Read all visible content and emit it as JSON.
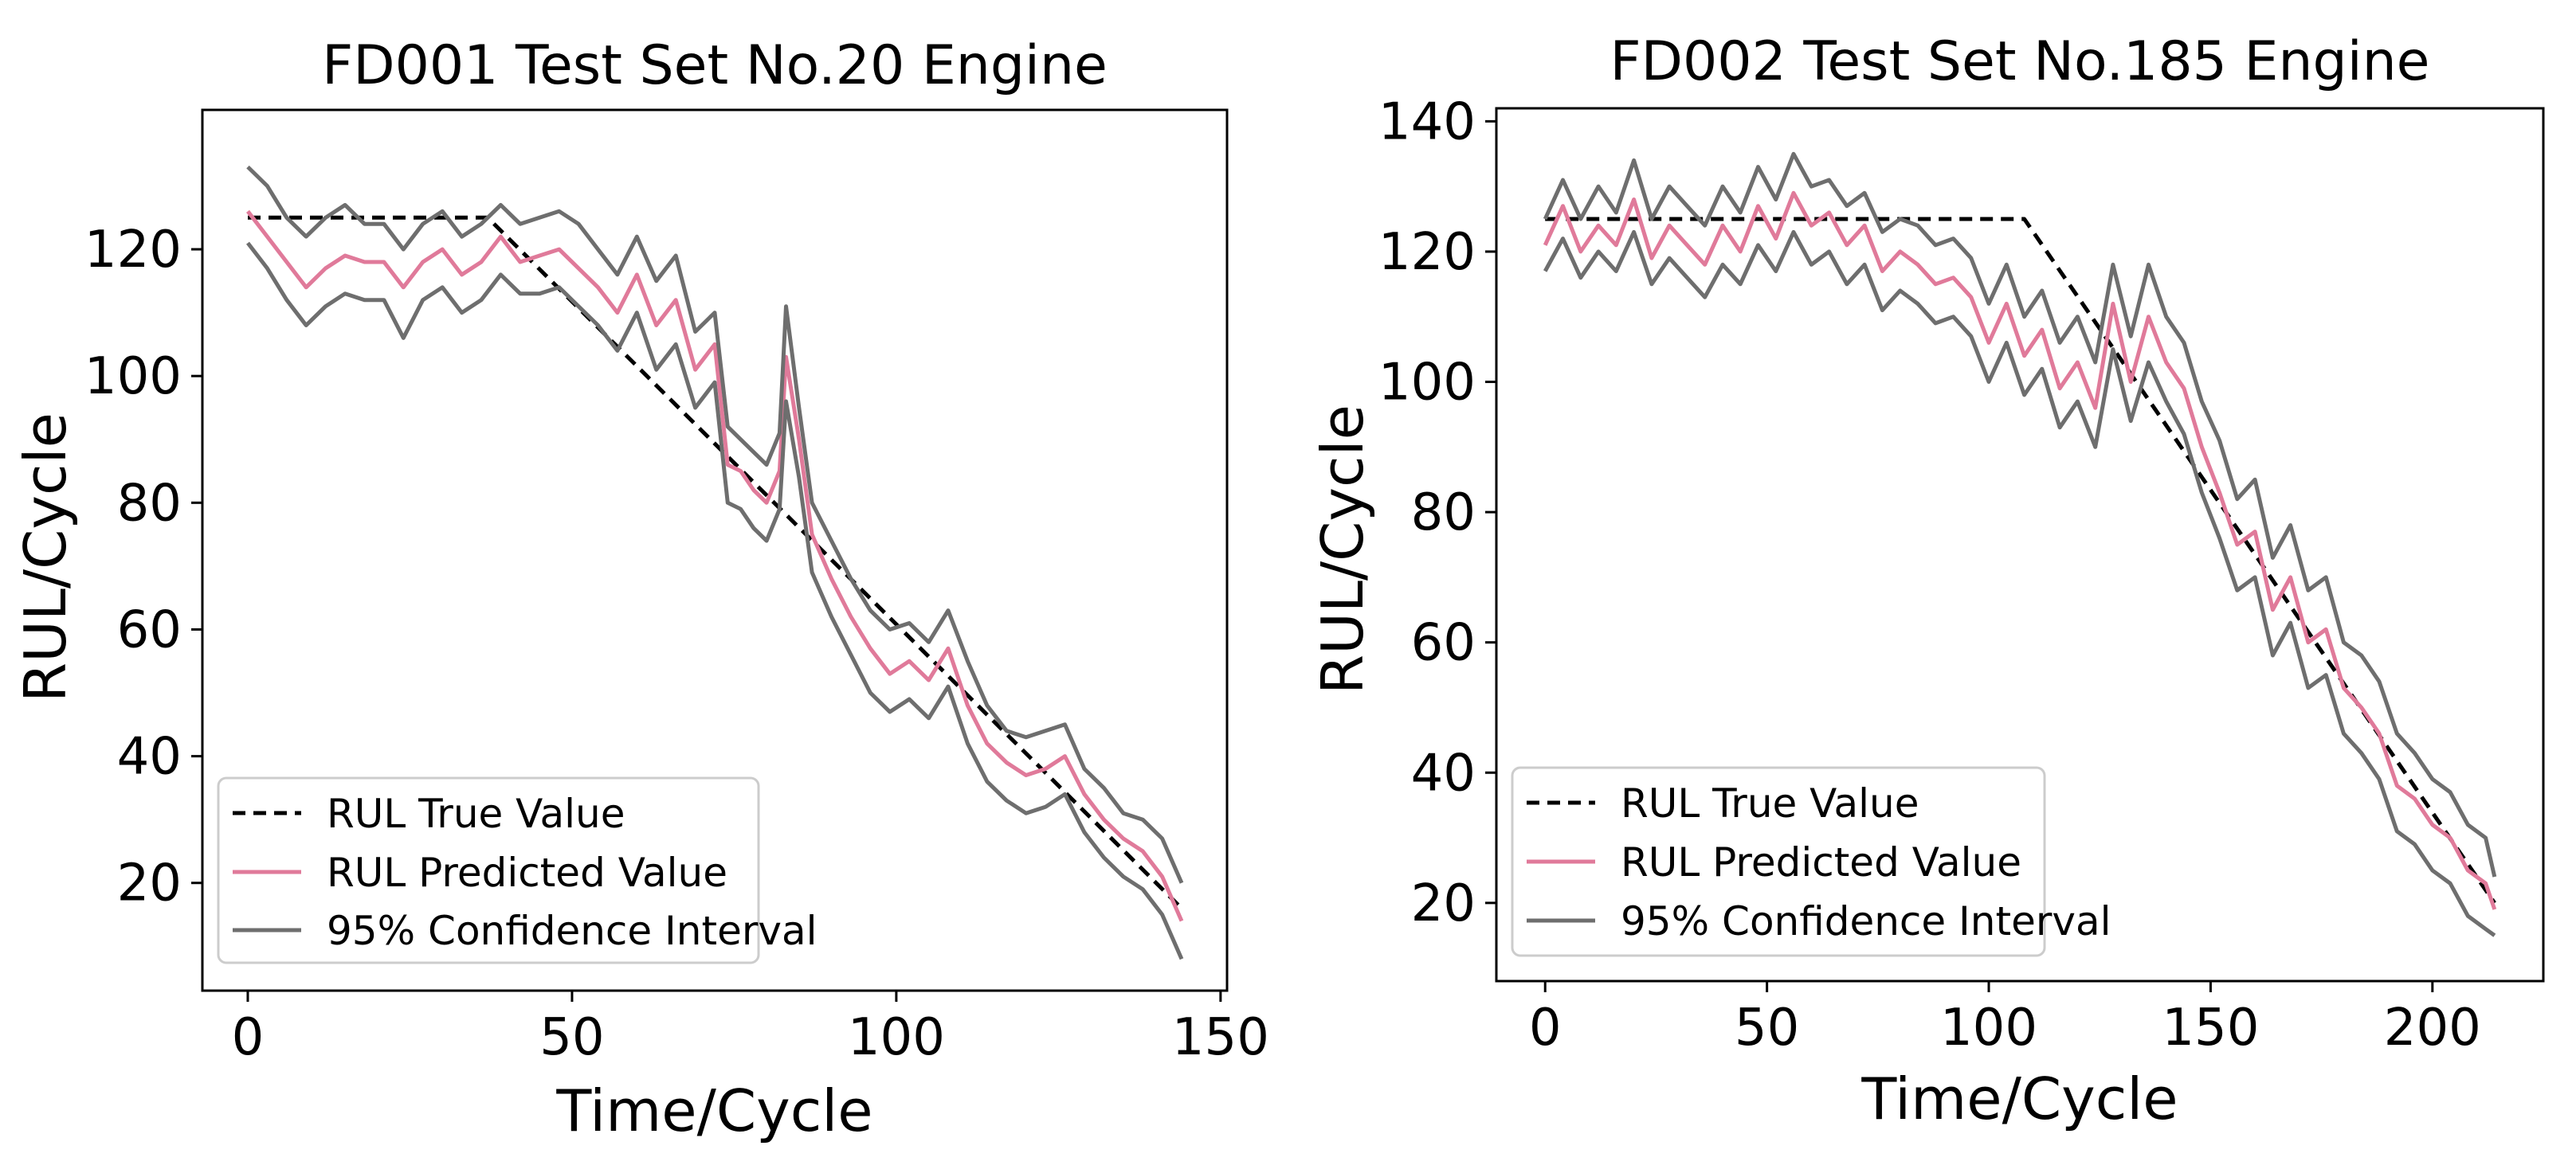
{
  "colors": {
    "true_line": "#000000",
    "predicted_line": "#e07a9a",
    "interval_line": "#6e6e6e",
    "axes": "#000000",
    "background": "#ffffff"
  },
  "legend": {
    "true_label": "RUL True Value",
    "predicted_label": "RUL Predicted Value",
    "interval_label": "95% Confidence Interval"
  },
  "chart_data": [
    {
      "type": "line",
      "title": "FD001 Test Set No.20 Engine",
      "xlabel": "Time/Cycle",
      "ylabel": "RUL/Cycle",
      "xlim": [
        -7,
        151
      ],
      "ylim": [
        3,
        142
      ],
      "xticks": [
        0,
        50,
        100,
        150
      ],
      "yticks": [
        20,
        40,
        60,
        80,
        100,
        120
      ],
      "grid": false,
      "legend_position": "lower-left",
      "series": [
        {
          "name": "RUL True Value",
          "style": "dashed",
          "x": [
            0,
            37,
            144
          ],
          "y": [
            125,
            125,
            16
          ]
        },
        {
          "name": "RUL Predicted Value",
          "style": "solid",
          "x": [
            0,
            3,
            6,
            9,
            12,
            15,
            18,
            21,
            24,
            27,
            30,
            33,
            36,
            39,
            42,
            45,
            48,
            51,
            54,
            57,
            60,
            63,
            66,
            69,
            72,
            74,
            76,
            78,
            80,
            82,
            83,
            85,
            87,
            90,
            93,
            96,
            99,
            102,
            105,
            108,
            111,
            114,
            117,
            120,
            123,
            126,
            129,
            132,
            135,
            138,
            141,
            144
          ],
          "y": [
            126,
            122,
            118,
            114,
            117,
            119,
            118,
            118,
            114,
            118,
            120,
            116,
            118,
            122,
            118,
            119,
            120,
            117,
            114,
            110,
            116,
            108,
            112,
            101,
            105,
            86,
            85,
            82,
            80,
            85,
            103,
            90,
            75,
            68,
            62,
            57,
            53,
            55,
            52,
            57,
            48,
            42,
            39,
            37,
            38,
            40,
            34,
            30,
            27,
            25,
            21,
            14
          ]
        },
        {
          "name": "95% Confidence Interval (upper)",
          "style": "solid",
          "x": [
            0,
            3,
            6,
            9,
            12,
            15,
            18,
            21,
            24,
            27,
            30,
            33,
            36,
            39,
            42,
            45,
            48,
            51,
            54,
            57,
            60,
            63,
            66,
            69,
            72,
            74,
            76,
            78,
            80,
            82,
            83,
            85,
            87,
            90,
            93,
            96,
            99,
            102,
            105,
            108,
            111,
            114,
            117,
            120,
            123,
            126,
            129,
            132,
            135,
            138,
            141,
            144
          ],
          "y": [
            133,
            130,
            125,
            122,
            125,
            127,
            124,
            124,
            120,
            124,
            126,
            122,
            124,
            127,
            124,
            125,
            126,
            124,
            120,
            116,
            122,
            115,
            119,
            107,
            110,
            92,
            90,
            88,
            86,
            91,
            111,
            95,
            80,
            74,
            68,
            63,
            60,
            61,
            58,
            63,
            55,
            48,
            44,
            43,
            44,
            45,
            38,
            35,
            31,
            30,
            27,
            20
          ]
        },
        {
          "name": "95% Confidence Interval (lower)",
          "style": "solid",
          "x": [
            0,
            3,
            6,
            9,
            12,
            15,
            18,
            21,
            24,
            27,
            30,
            33,
            36,
            39,
            42,
            45,
            48,
            51,
            54,
            57,
            60,
            63,
            66,
            69,
            72,
            74,
            76,
            78,
            80,
            82,
            83,
            85,
            87,
            90,
            93,
            96,
            99,
            102,
            105,
            108,
            111,
            114,
            117,
            120,
            123,
            126,
            129,
            132,
            135,
            138,
            141,
            144
          ],
          "y": [
            121,
            117,
            112,
            108,
            111,
            113,
            112,
            112,
            106,
            112,
            114,
            110,
            112,
            116,
            113,
            113,
            114,
            111,
            108,
            104,
            110,
            101,
            105,
            95,
            99,
            80,
            79,
            76,
            74,
            79,
            96,
            84,
            69,
            62,
            56,
            50,
            47,
            49,
            46,
            51,
            42,
            36,
            33,
            31,
            32,
            34,
            28,
            24,
            21,
            19,
            15,
            8
          ]
        }
      ]
    },
    {
      "type": "line",
      "title": "FD002 Test Set No.185 Engine",
      "xlabel": "Time/Cycle",
      "ylabel": "RUL/Cycle",
      "xlim": [
        -11,
        225
      ],
      "ylim": [
        8,
        142
      ],
      "xticks": [
        0,
        50,
        100,
        150,
        200
      ],
      "yticks": [
        20,
        40,
        60,
        80,
        100,
        120,
        140
      ],
      "grid": false,
      "legend_position": "lower-left",
      "series": [
        {
          "name": "RUL True Value",
          "style": "dashed",
          "x": [
            0,
            108,
            214
          ],
          "y": [
            125,
            125,
            20
          ]
        },
        {
          "name": "RUL Predicted Value",
          "style": "solid",
          "x": [
            0,
            4,
            8,
            12,
            16,
            20,
            24,
            28,
            32,
            36,
            40,
            44,
            48,
            52,
            56,
            60,
            64,
            68,
            72,
            76,
            80,
            84,
            88,
            92,
            96,
            100,
            104,
            108,
            112,
            116,
            120,
            124,
            128,
            132,
            136,
            140,
            144,
            148,
            152,
            156,
            160,
            164,
            168,
            172,
            176,
            180,
            184,
            188,
            192,
            196,
            200,
            204,
            208,
            212,
            214
          ],
          "y": [
            121,
            127,
            120,
            124,
            121,
            128,
            119,
            124,
            121,
            118,
            124,
            120,
            127,
            122,
            129,
            124,
            126,
            121,
            124,
            117,
            120,
            118,
            115,
            116,
            113,
            106,
            112,
            104,
            108,
            99,
            103,
            96,
            112,
            100,
            110,
            103,
            99,
            90,
            83,
            75,
            77,
            65,
            70,
            60,
            62,
            53,
            50,
            46,
            38,
            36,
            32,
            30,
            25,
            23,
            19
          ]
        },
        {
          "name": "95% Confidence Interval (upper)",
          "style": "solid",
          "x": [
            0,
            4,
            8,
            12,
            16,
            20,
            24,
            28,
            32,
            36,
            40,
            44,
            48,
            52,
            56,
            60,
            64,
            68,
            72,
            76,
            80,
            84,
            88,
            92,
            96,
            100,
            104,
            108,
            112,
            116,
            120,
            124,
            128,
            132,
            136,
            140,
            144,
            148,
            152,
            156,
            160,
            164,
            168,
            172,
            176,
            180,
            184,
            188,
            192,
            196,
            200,
            204,
            208,
            212,
            214
          ],
          "y": [
            125,
            131,
            125,
            130,
            126,
            134,
            125,
            130,
            127,
            124,
            130,
            126,
            133,
            128,
            135,
            130,
            131,
            127,
            129,
            123,
            125,
            124,
            121,
            122,
            119,
            112,
            118,
            110,
            114,
            106,
            110,
            103,
            118,
            107,
            118,
            110,
            106,
            97,
            91,
            82,
            85,
            73,
            78,
            68,
            70,
            60,
            58,
            54,
            46,
            43,
            39,
            37,
            32,
            30,
            24
          ]
        },
        {
          "name": "95% Confidence Interval (lower)",
          "style": "solid",
          "x": [
            0,
            4,
            8,
            12,
            16,
            20,
            24,
            28,
            32,
            36,
            40,
            44,
            48,
            52,
            56,
            60,
            64,
            68,
            72,
            76,
            80,
            84,
            88,
            92,
            96,
            100,
            104,
            108,
            112,
            116,
            120,
            124,
            128,
            132,
            136,
            140,
            144,
            148,
            152,
            156,
            160,
            164,
            168,
            172,
            176,
            180,
            184,
            188,
            192,
            196,
            200,
            204,
            208,
            212,
            214
          ],
          "y": [
            117,
            122,
            116,
            120,
            117,
            123,
            115,
            119,
            116,
            113,
            118,
            115,
            121,
            117,
            123,
            118,
            120,
            115,
            118,
            111,
            114,
            112,
            109,
            110,
            107,
            100,
            106,
            98,
            102,
            93,
            97,
            90,
            105,
            94,
            103,
            97,
            92,
            83,
            76,
            68,
            70,
            58,
            63,
            53,
            55,
            46,
            43,
            39,
            31,
            29,
            25,
            23,
            18,
            16,
            15
          ]
        }
      ]
    }
  ]
}
